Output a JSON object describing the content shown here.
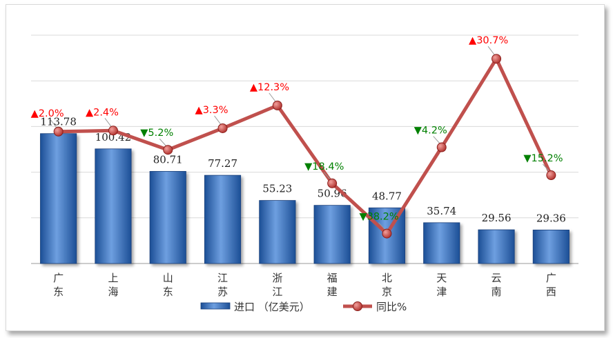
{
  "chart_data": {
    "type": "bar",
    "categories": [
      "广东",
      "上海",
      "山东",
      "江苏",
      "浙江",
      "福建",
      "北京",
      "天津",
      "云南",
      "广西"
    ],
    "series": [
      {
        "name": "进口 （亿美元）",
        "type": "bar",
        "values": [
          113.78,
          100.42,
          80.71,
          77.27,
          55.23,
          50.96,
          48.77,
          35.74,
          29.56,
          29.36
        ],
        "labels": [
          "113.78",
          "100.42",
          "80.71",
          "77.27",
          "55.23",
          "50.96",
          "48.77",
          "35.74",
          "29.56",
          "29.36"
        ]
      },
      {
        "name": "同比%",
        "type": "line",
        "values": [
          2.0,
          2.4,
          -5.2,
          3.3,
          12.3,
          -18.4,
          -38.2,
          -4.2,
          30.7,
          -15.2
        ],
        "labels": [
          "▲2.0%",
          "▲2.4%",
          "▼5.2%",
          "▲3.3%",
          "▲12.3%",
          "▼18.4%",
          "▼38.2%",
          "▼4.2%",
          "▲30.7%",
          "▼15.2%"
        ]
      }
    ],
    "ylim_bar": [
      0,
      200
    ],
    "ylim_line": [
      -50,
      40
    ],
    "grid": true,
    "legend": "bottom",
    "colors": {
      "bar_top": "#6e9fe0",
      "bar_bottom": "#1c4f96",
      "line": "#c0504d",
      "marker": "#b0302c",
      "up": "#ff0000",
      "down": "#008000",
      "grid": "#d9d9d9"
    }
  }
}
